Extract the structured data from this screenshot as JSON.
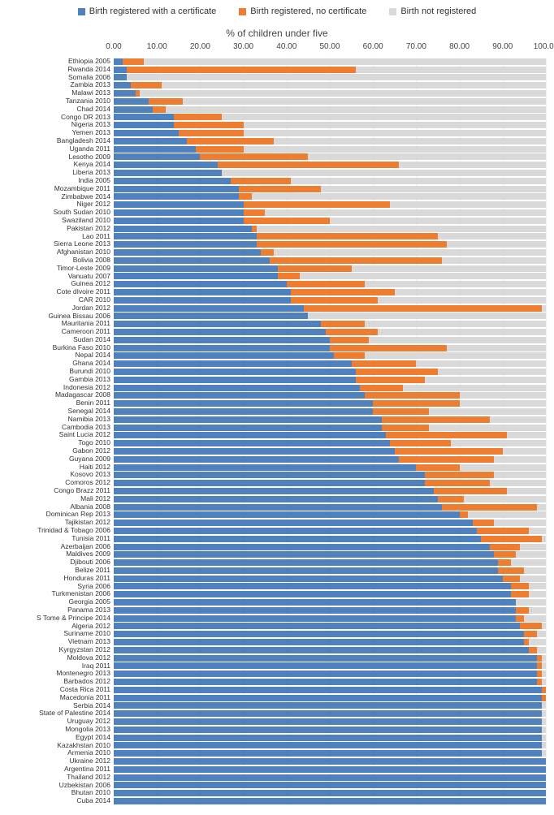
{
  "chart": {
    "type": "stacked-bar-horizontal",
    "title": "% of children under five",
    "title_fontsize": 12,
    "xlim": [
      0,
      100
    ],
    "xtick_step": 10,
    "xtick_decimals": 2,
    "background_color": "#ffffff",
    "grid_color": "#f0f0f0",
    "label_fontsize": 8.5,
    "tick_fontsize": 10,
    "colors": {
      "registered_cert": "#4f81bd",
      "registered_nocert": "#ed7d31",
      "not_registered": "#d9d9d9"
    },
    "series_labels": {
      "registered_cert": "Birth registered with a certificate",
      "registered_nocert": "Birth registered, no certificate",
      "not_registered": "Birth not registered"
    },
    "rows": [
      {
        "label": "Ethiopia 2005",
        "cert": 2,
        "nocert": 5
      },
      {
        "label": "Rwanda 2014",
        "cert": 3,
        "nocert": 53
      },
      {
        "label": "Somalia 2006",
        "cert": 3,
        "nocert": 0
      },
      {
        "label": "Zambia 2013",
        "cert": 4,
        "nocert": 7
      },
      {
        "label": "Malawi 2013",
        "cert": 5,
        "nocert": 1
      },
      {
        "label": "Tanzania 2010",
        "cert": 8,
        "nocert": 8
      },
      {
        "label": "Chad 2014",
        "cert": 9,
        "nocert": 3
      },
      {
        "label": "Congo DR 2013",
        "cert": 14,
        "nocert": 11
      },
      {
        "label": "Nigeria 2013",
        "cert": 14,
        "nocert": 16
      },
      {
        "label": "Yemen 2013",
        "cert": 15,
        "nocert": 15
      },
      {
        "label": "Bangladesh 2014",
        "cert": 17,
        "nocert": 20
      },
      {
        "label": "Uganda 2011",
        "cert": 19,
        "nocert": 11
      },
      {
        "label": "Lesotho 2009",
        "cert": 20,
        "nocert": 25
      },
      {
        "label": "Kenya 2014",
        "cert": 24,
        "nocert": 42
      },
      {
        "label": "Liberia 2013",
        "cert": 25,
        "nocert": 0
      },
      {
        "label": "India 2005",
        "cert": 27,
        "nocert": 14
      },
      {
        "label": "Mozambique 2011",
        "cert": 29,
        "nocert": 19
      },
      {
        "label": "Zimbabwe 2014",
        "cert": 29,
        "nocert": 3
      },
      {
        "label": "Niger 2012",
        "cert": 30,
        "nocert": 34
      },
      {
        "label": "South Sudan 2010",
        "cert": 30,
        "nocert": 5
      },
      {
        "label": "Swaziland 2010",
        "cert": 30,
        "nocert": 20
      },
      {
        "label": "Pakistan 2012",
        "cert": 32,
        "nocert": 1
      },
      {
        "label": "Lao 2011",
        "cert": 33,
        "nocert": 42
      },
      {
        "label": "Sierra Leone 2013",
        "cert": 33,
        "nocert": 44
      },
      {
        "label": "Afghanistan 2010",
        "cert": 34,
        "nocert": 3
      },
      {
        "label": "Bolivia 2008",
        "cert": 36,
        "nocert": 40
      },
      {
        "label": "Timor-Leste 2009",
        "cert": 38,
        "nocert": 17
      },
      {
        "label": "Vanuatu 2007",
        "cert": 38,
        "nocert": 5
      },
      {
        "label": "Guinea 2012",
        "cert": 40,
        "nocert": 18
      },
      {
        "label": "Cote dIvoire 2011",
        "cert": 41,
        "nocert": 24
      },
      {
        "label": "CAR 2010",
        "cert": 41,
        "nocert": 20
      },
      {
        "label": "Jordan 2012",
        "cert": 44,
        "nocert": 55
      },
      {
        "label": "Guinea Bissau 2006",
        "cert": 45,
        "nocert": 0
      },
      {
        "label": "Mauritania 2011",
        "cert": 48,
        "nocert": 10
      },
      {
        "label": "Cameroon 2011",
        "cert": 49,
        "nocert": 12
      },
      {
        "label": "Sudan 2014",
        "cert": 50,
        "nocert": 9
      },
      {
        "label": "Burkina Faso 2010",
        "cert": 50,
        "nocert": 27
      },
      {
        "label": "Nepal 2014",
        "cert": 51,
        "nocert": 7
      },
      {
        "label": "Ghana 2014",
        "cert": 55,
        "nocert": 15
      },
      {
        "label": "Burundi 2010",
        "cert": 56,
        "nocert": 19
      },
      {
        "label": "Gambia 2013",
        "cert": 56,
        "nocert": 16
      },
      {
        "label": "Indonesia 2012",
        "cert": 57,
        "nocert": 10
      },
      {
        "label": "Madagascar 2008",
        "cert": 58,
        "nocert": 22
      },
      {
        "label": "Benin 2011",
        "cert": 60,
        "nocert": 20
      },
      {
        "label": "Senegal 2014",
        "cert": 60,
        "nocert": 13
      },
      {
        "label": "Namibia 2013",
        "cert": 62,
        "nocert": 25
      },
      {
        "label": "Cambodia 2013",
        "cert": 62,
        "nocert": 11
      },
      {
        "label": "Saint Lucia 2012",
        "cert": 63,
        "nocert": 28
      },
      {
        "label": "Togo 2010",
        "cert": 64,
        "nocert": 14
      },
      {
        "label": "Gabon 2012",
        "cert": 65,
        "nocert": 25
      },
      {
        "label": "Guyana 2009",
        "cert": 66,
        "nocert": 22
      },
      {
        "label": "Haiti 2012",
        "cert": 70,
        "nocert": 10
      },
      {
        "label": "Kosovo 2013",
        "cert": 72,
        "nocert": 16
      },
      {
        "label": "Comoros 2012",
        "cert": 72,
        "nocert": 15
      },
      {
        "label": "Congo Brazz 2011",
        "cert": 74,
        "nocert": 17
      },
      {
        "label": "Mali 2012",
        "cert": 75,
        "nocert": 6
      },
      {
        "label": "Albania 2008",
        "cert": 76,
        "nocert": 22
      },
      {
        "label": "Dominican Rep 2013",
        "cert": 80,
        "nocert": 2
      },
      {
        "label": "Tajikistan 2012",
        "cert": 83,
        "nocert": 5
      },
      {
        "label": "Trinidad & Tobago 2006",
        "cert": 84,
        "nocert": 12
      },
      {
        "label": "Tunisia 2011",
        "cert": 85,
        "nocert": 14
      },
      {
        "label": "Azerbaijan 2006",
        "cert": 87,
        "nocert": 7
      },
      {
        "label": "Maldives 2009",
        "cert": 88,
        "nocert": 5
      },
      {
        "label": "Djibouti 2006",
        "cert": 89,
        "nocert": 3
      },
      {
        "label": "Belize 2011",
        "cert": 89,
        "nocert": 6
      },
      {
        "label": "Honduras 2011",
        "cert": 90,
        "nocert": 4
      },
      {
        "label": "Syria 2006",
        "cert": 92,
        "nocert": 4
      },
      {
        "label": "Turkmenistan 2006",
        "cert": 92,
        "nocert": 4
      },
      {
        "label": "Georgia 2005",
        "cert": 93,
        "nocert": 0
      },
      {
        "label": "Panama 2013",
        "cert": 93,
        "nocert": 3
      },
      {
        "label": "S Tome & Principe 2014",
        "cert": 93,
        "nocert": 2
      },
      {
        "label": "Algeria 2012",
        "cert": 94,
        "nocert": 5
      },
      {
        "label": "Suriname 2010",
        "cert": 95,
        "nocert": 3
      },
      {
        "label": "Vietnam 2013",
        "cert": 95,
        "nocert": 1
      },
      {
        "label": "Kyrgyzstan 2012",
        "cert": 96,
        "nocert": 2
      },
      {
        "label": "Moldova 2012",
        "cert": 98,
        "nocert": 1
      },
      {
        "label": "Iraq 2011",
        "cert": 98,
        "nocert": 1
      },
      {
        "label": "Montenegro 2013",
        "cert": 98,
        "nocert": 1
      },
      {
        "label": "Barbados 2012",
        "cert": 98,
        "nocert": 1
      },
      {
        "label": "Costa Rica 2011",
        "cert": 99,
        "nocert": 1
      },
      {
        "label": "Macedonia 2011",
        "cert": 99,
        "nocert": 1
      },
      {
        "label": "Serbia 2014",
        "cert": 99,
        "nocert": 0
      },
      {
        "label": "State of Palestine 2014",
        "cert": 99,
        "nocert": 0
      },
      {
        "label": "Uruguay 2012",
        "cert": 99,
        "nocert": 0
      },
      {
        "label": "Mongolia 2013",
        "cert": 99,
        "nocert": 0
      },
      {
        "label": "Egypt 2014",
        "cert": 99,
        "nocert": 0
      },
      {
        "label": "Kazakhstan 2010",
        "cert": 99,
        "nocert": 0
      },
      {
        "label": "Armenia 2010",
        "cert": 99,
        "nocert": 0
      },
      {
        "label": "Ukraine 2012",
        "cert": 100,
        "nocert": 0
      },
      {
        "label": "Argentina 2011",
        "cert": 100,
        "nocert": 0
      },
      {
        "label": "Thailand 2012",
        "cert": 100,
        "nocert": 0
      },
      {
        "label": "Uzbekistan 2006",
        "cert": 100,
        "nocert": 0
      },
      {
        "label": "Bhutan 2010",
        "cert": 100,
        "nocert": 0
      },
      {
        "label": "Cuba 2014",
        "cert": 100,
        "nocert": 0
      }
    ]
  }
}
